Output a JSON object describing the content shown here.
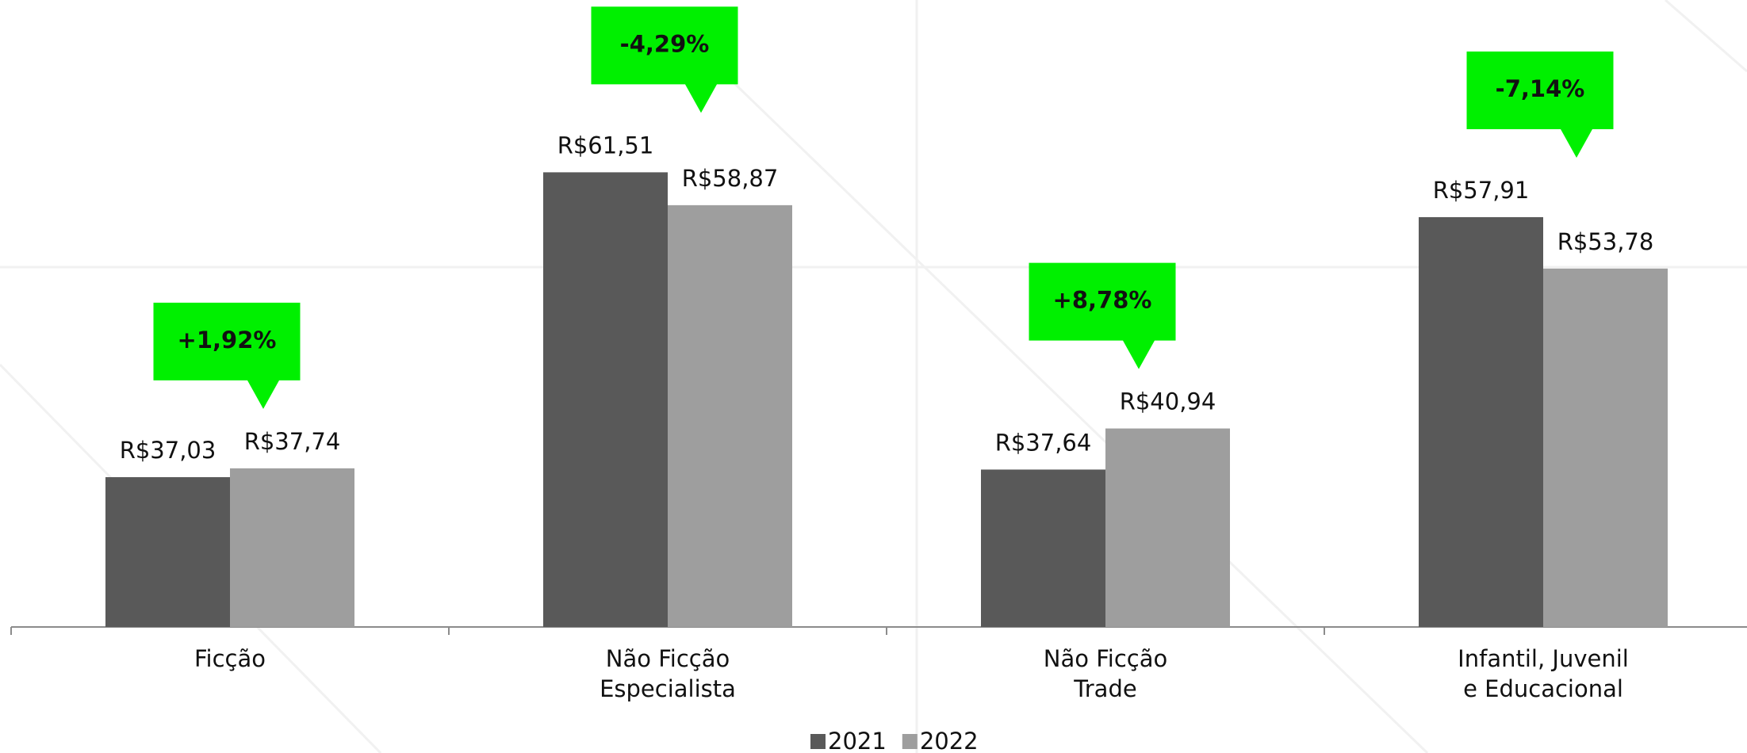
{
  "chart_data": {
    "type": "bar",
    "categories": [
      [
        "Ficção"
      ],
      [
        "Não Ficção",
        "Especialista"
      ],
      [
        "Não Ficção",
        "Trade"
      ],
      [
        "Infantil, Juvenil",
        "e Educacional"
      ]
    ],
    "series": [
      {
        "name": "2021",
        "color": "#595959",
        "values": [
          37.03,
          61.51,
          37.64,
          57.91
        ],
        "value_labels": [
          "R$37,03",
          "R$61,51",
          "R$37,64",
          "R$57,91"
        ]
      },
      {
        "name": "2022",
        "color": "#9e9e9e",
        "values": [
          37.74,
          58.87,
          40.94,
          53.78
        ],
        "value_labels": [
          "R$37,74",
          "R$58,87",
          "R$40,94",
          "R$53,78"
        ]
      }
    ],
    "annotations": [
      "+1,92%",
      "-4,29%",
      "+8,78%",
      "-7,14%"
    ],
    "annotation_color": "#00f000",
    "ylim": [
      25,
      70
    ],
    "legend": "bottom"
  }
}
